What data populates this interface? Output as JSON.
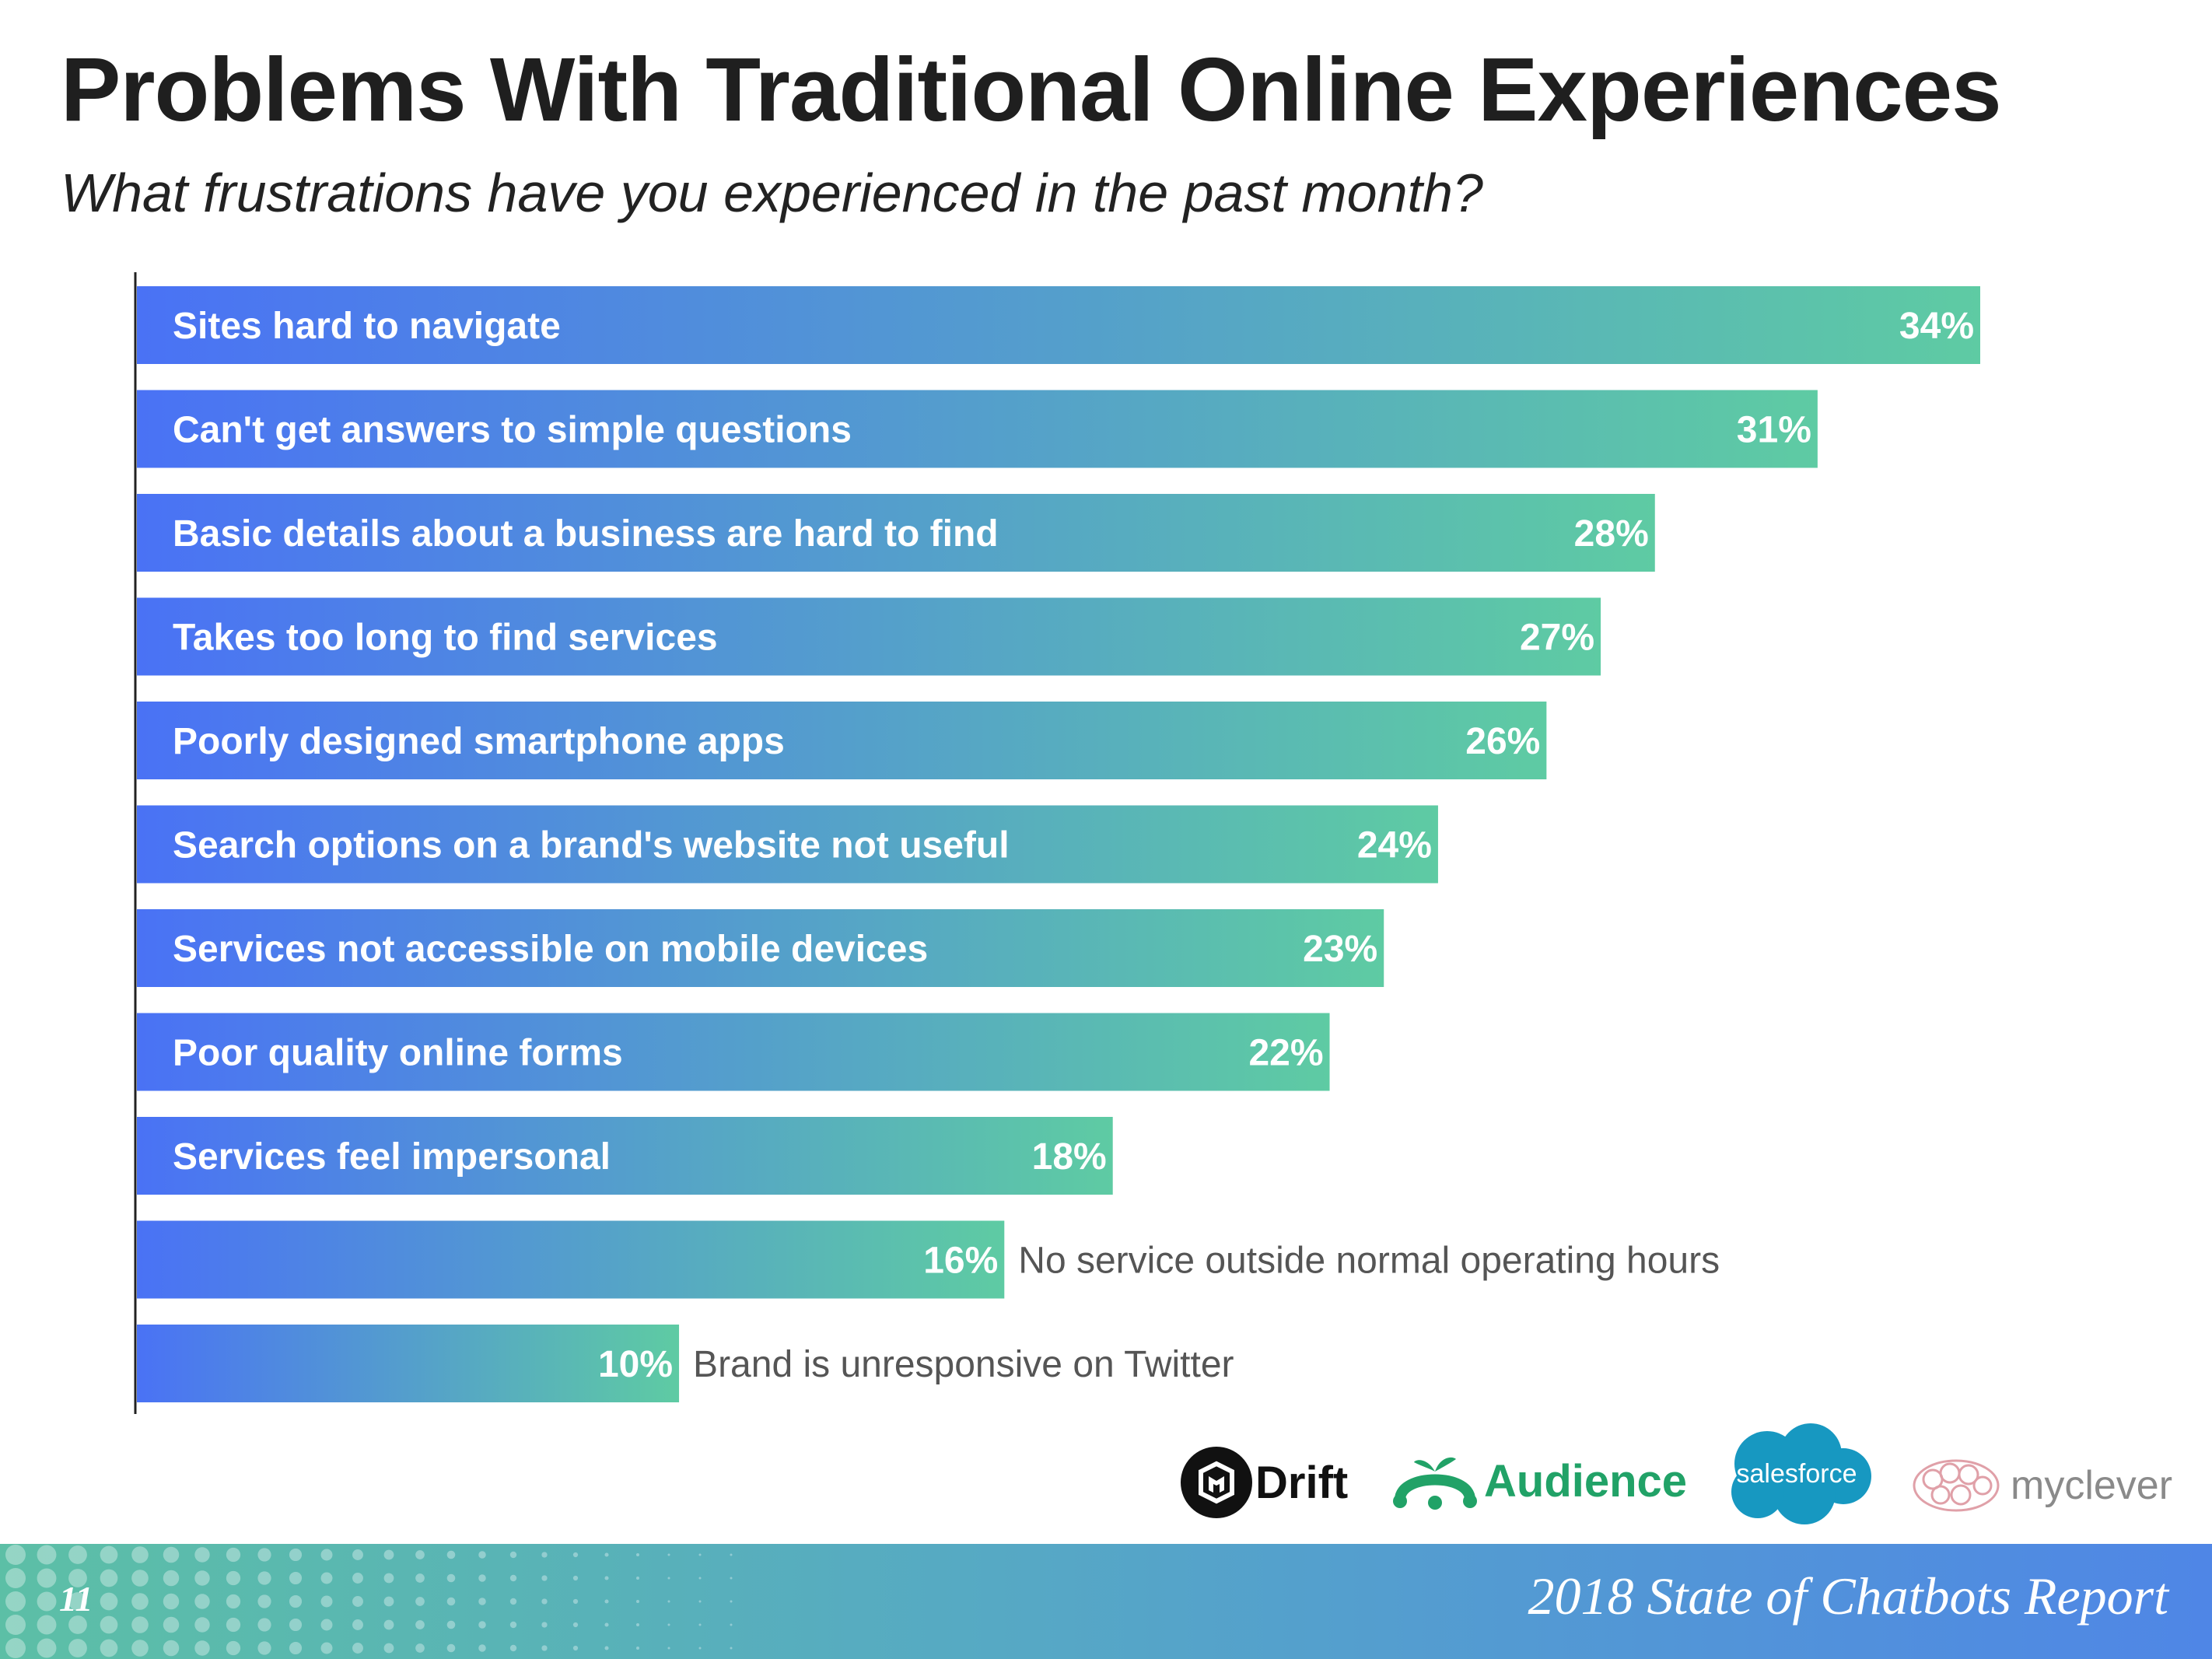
{
  "header": {
    "title": "Problems With Traditional Online Experiences",
    "subtitle": "What frustrations have you experienced in the past month?"
  },
  "chart_data": {
    "type": "bar",
    "orientation": "horizontal",
    "title": "Problems With Traditional Online Experiences",
    "subtitle": "What frustrations have you experienced in the past month?",
    "categories": [
      "Sites hard to navigate",
      "Can't get answers to simple questions",
      "Basic details about a business are hard to find",
      "Takes too long to find services",
      "Poorly designed smartphone apps",
      "Search options on a brand's website not useful",
      "Services not accessible on mobile devices",
      "Poor quality online forms",
      "Services feel impersonal",
      "No service outside normal operating hours",
      "Brand is unresponsive on Twitter"
    ],
    "values": [
      34,
      31,
      28,
      27,
      26,
      24,
      23,
      22,
      18,
      16,
      10
    ],
    "value_labels": [
      "34%",
      "31%",
      "28%",
      "27%",
      "26%",
      "24%",
      "23%",
      "22%",
      "18%",
      "16%",
      "10%"
    ],
    "unit": "%",
    "xlim": [
      0,
      34
    ],
    "grid": false,
    "legend": "none",
    "colors": {
      "gradient_start": "#4a72f5",
      "gradient_end": "#5ecba3",
      "outside_text": "#555555"
    }
  },
  "logos": {
    "drift": "Drift",
    "audience": "Audience",
    "salesforce": "salesforce",
    "myclever": "myclever"
  },
  "footer": {
    "page_number": "11",
    "report_title": "2018 State of Chatbots Report"
  }
}
